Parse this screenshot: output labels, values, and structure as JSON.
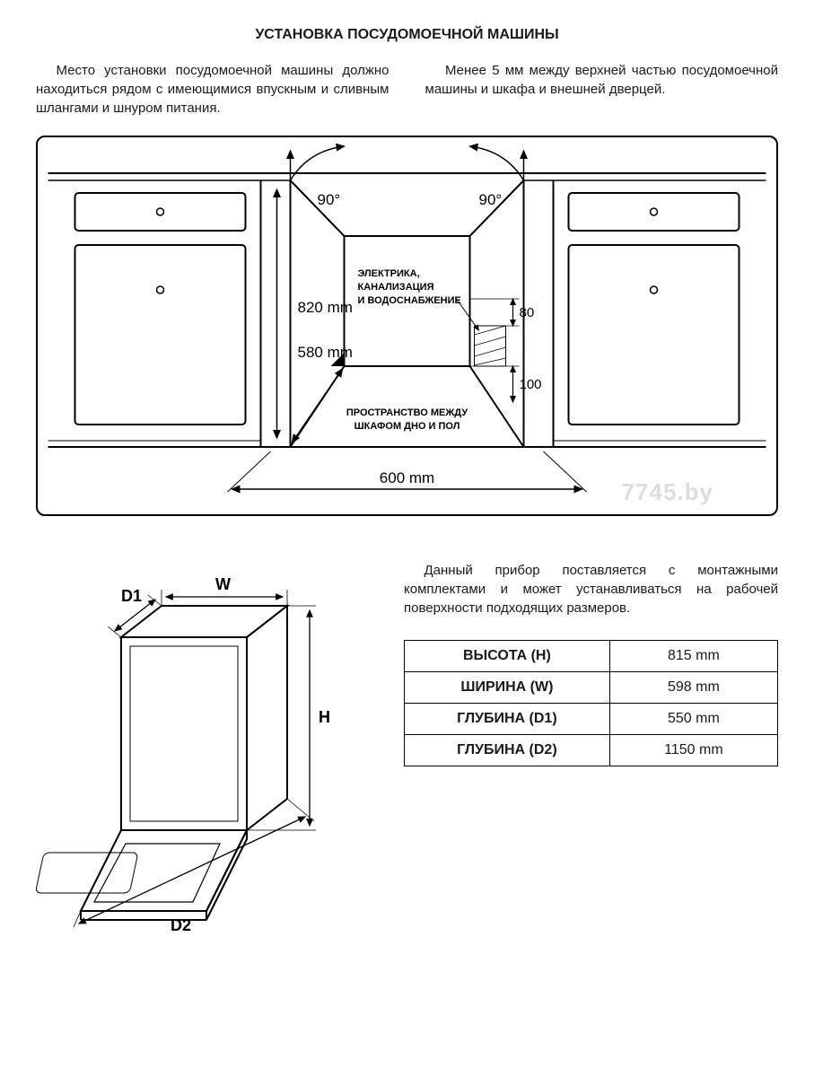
{
  "title": "УСТАНОВКА ПОСУДОМОЕЧНОЙ МАШИНЫ",
  "columns": {
    "left": "Место установки посудомоечной машины должно находиться рядом с имеющимися впускным и сливным шлангами и шнуром питания.",
    "right": "Менее 5 мм между верхней частью посудомоечной машины и шкафа и внешней дверцей."
  },
  "diagram1": {
    "angle_left": "90°",
    "angle_right": "90°",
    "height_label": "820 mm",
    "depth_label": "580 mm",
    "width_label": "600 mm",
    "gap1": "80",
    "gap2": "100",
    "utilities_l1": "ЭЛЕКТРИКА,",
    "utilities_l2": "КАНАЛИЗАЦИЯ",
    "utilities_l3": "И ВОДОСНАБЖЕНИЕ",
    "floor_l1": "ПРОСТРАНСТВО МЕЖДУ",
    "floor_l2": "ШКАФОМ ДНО И ПОЛ",
    "line_color": "#000000",
    "bg_color": "#ffffff"
  },
  "watermark": "7745.by",
  "diagram2": {
    "D1": "D1",
    "W": "W",
    "H": "H",
    "D2": "D2"
  },
  "description": "Данный прибор поставляется с монтажными комплектами и может устанавливаться на рабочей поверхности подходящих размеров.",
  "dims_table": {
    "rows": [
      {
        "label": "ВЫСОТА (H)",
        "value": "815 mm"
      },
      {
        "label": "ШИРИНА (W)",
        "value": "598 mm"
      },
      {
        "label": "ГЛУБИНА (D1)",
        "value": "550 mm"
      },
      {
        "label": "ГЛУБИНА (D2)",
        "value": "1150 mm"
      }
    ]
  }
}
